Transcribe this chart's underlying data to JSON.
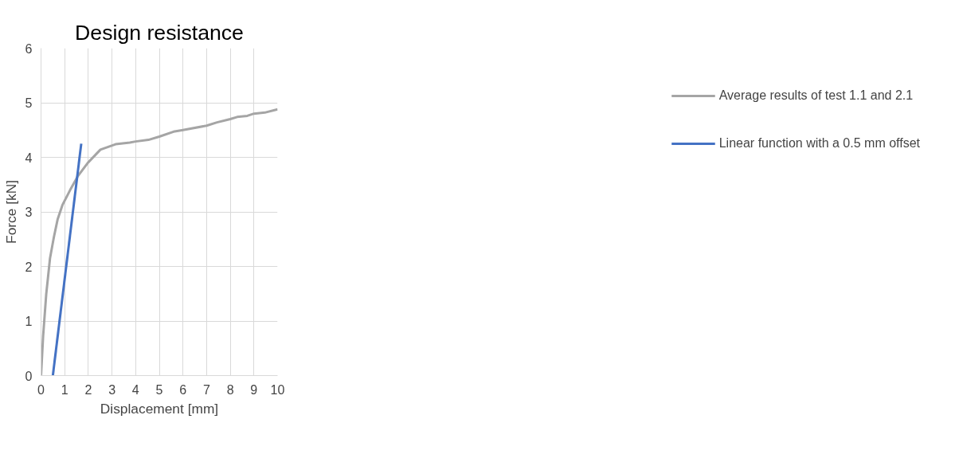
{
  "chart_data": {
    "type": "line",
    "title": "Design resistance",
    "xlabel": "Displacement [mm]",
    "ylabel": "Force [kN]",
    "xlim": [
      0,
      10
    ],
    "xticks": [
      0,
      1,
      2,
      3,
      4,
      5,
      6,
      7,
      8,
      9,
      10
    ],
    "ylim": [
      0,
      6
    ],
    "yticks": [
      0,
      1,
      2,
      3,
      4,
      5,
      6
    ],
    "grid": true,
    "legend": "right",
    "marker": "none",
    "line_style": "solid",
    "series": [
      {
        "name": "Average results of test 1.1 and 2.1",
        "color": "#a5a5a5",
        "x": [
          0,
          0.09,
          0.22,
          0.38,
          0.54,
          0.7,
          0.91,
          1.23,
          1.55,
          1.98,
          2.51,
          3.15,
          3.75,
          4,
          4.54,
          5,
          5.6,
          6,
          7,
          7.44,
          8,
          8.29,
          8.72,
          9,
          9.46,
          10
        ],
        "values": [
          0,
          0.73,
          1.49,
          2.15,
          2.53,
          2.86,
          3.13,
          3.4,
          3.65,
          3.9,
          4.14,
          4.24,
          4.27,
          4.29,
          4.32,
          4.38,
          4.47,
          4.5,
          4.58,
          4.64,
          4.7,
          4.74,
          4.76,
          4.8,
          4.82,
          4.88
        ]
      },
      {
        "name": "Linear function with a 0.5 mm offset",
        "color": "#4472c4",
        "x": [
          0.5,
          1.7
        ],
        "values": [
          0,
          4.25
        ]
      }
    ]
  }
}
